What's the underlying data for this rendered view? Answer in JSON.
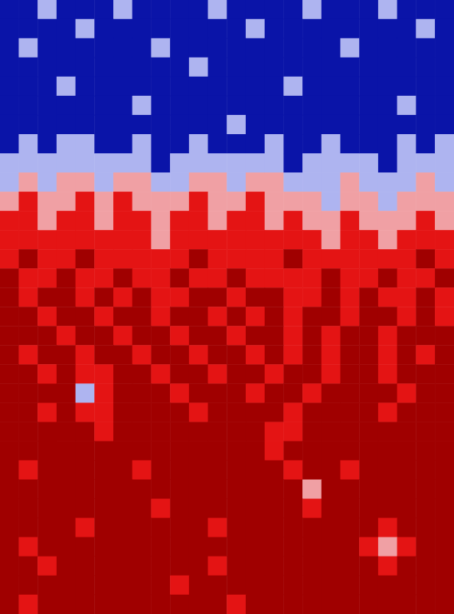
{
  "chart_data": {
    "type": "heatmap",
    "tick_labels": false,
    "zlim": [
      0,
      5
    ],
    "colors": [
      "#0a14a8",
      "#aeb4f0",
      "#f0a0a4",
      "#e41414",
      "#a00000"
    ],
    "values": [
      [
        0,
        0,
        1,
        0,
        0,
        0,
        1,
        0,
        0,
        0,
        0,
        1,
        0,
        0,
        0,
        0,
        1,
        0,
        0,
        0,
        1,
        0,
        0,
        0
      ],
      [
        0,
        0,
        0,
        0,
        1,
        0,
        0,
        0,
        0,
        0,
        0,
        0,
        0,
        1,
        0,
        0,
        0,
        0,
        0,
        0,
        0,
        0,
        1,
        0
      ],
      [
        0,
        1,
        0,
        0,
        0,
        0,
        0,
        0,
        1,
        0,
        0,
        0,
        0,
        0,
        0,
        0,
        0,
        0,
        1,
        0,
        0,
        0,
        0,
        0
      ],
      [
        0,
        0,
        0,
        0,
        0,
        0,
        0,
        0,
        0,
        0,
        1,
        0,
        0,
        0,
        0,
        0,
        0,
        0,
        0,
        0,
        0,
        0,
        0,
        0
      ],
      [
        0,
        0,
        0,
        1,
        0,
        0,
        0,
        0,
        0,
        0,
        0,
        0,
        0,
        0,
        0,
        1,
        0,
        0,
        0,
        0,
        0,
        0,
        0,
        0
      ],
      [
        0,
        0,
        0,
        0,
        0,
        0,
        0,
        1,
        0,
        0,
        0,
        0,
        0,
        0,
        0,
        0,
        0,
        0,
        0,
        0,
        0,
        1,
        0,
        0
      ],
      [
        0,
        0,
        0,
        0,
        0,
        0,
        0,
        0,
        0,
        0,
        0,
        0,
        1,
        0,
        0,
        0,
        0,
        0,
        0,
        0,
        0,
        0,
        0,
        0
      ],
      [
        0,
        1,
        0,
        1,
        1,
        0,
        0,
        1,
        0,
        0,
        1,
        0,
        0,
        0,
        1,
        0,
        0,
        1,
        0,
        0,
        0,
        1,
        0,
        1
      ],
      [
        1,
        1,
        1,
        1,
        1,
        1,
        1,
        1,
        0,
        1,
        1,
        1,
        1,
        1,
        1,
        0,
        1,
        1,
        1,
        1,
        0,
        1,
        1,
        1
      ],
      [
        1,
        2,
        1,
        2,
        2,
        1,
        2,
        2,
        1,
        1,
        2,
        2,
        1,
        2,
        2,
        1,
        1,
        1,
        2,
        1,
        1,
        1,
        2,
        1
      ],
      [
        2,
        3,
        2,
        2,
        3,
        2,
        3,
        2,
        2,
        2,
        3,
        2,
        2,
        3,
        2,
        2,
        2,
        1,
        2,
        2,
        1,
        2,
        2,
        2
      ],
      [
        3,
        3,
        2,
        3,
        3,
        2,
        3,
        3,
        2,
        3,
        3,
        2,
        3,
        3,
        2,
        3,
        2,
        2,
        3,
        2,
        2,
        2,
        3,
        2
      ],
      [
        3,
        3,
        3,
        3,
        3,
        3,
        3,
        3,
        2,
        3,
        3,
        3,
        3,
        3,
        3,
        3,
        3,
        2,
        3,
        3,
        2,
        3,
        3,
        3
      ],
      [
        3,
        4,
        3,
        3,
        4,
        3,
        3,
        3,
        3,
        3,
        4,
        3,
        3,
        3,
        3,
        4,
        3,
        3,
        3,
        3,
        3,
        3,
        4,
        3
      ],
      [
        4,
        3,
        3,
        4,
        3,
        3,
        4,
        3,
        3,
        4,
        3,
        3,
        4,
        3,
        3,
        3,
        3,
        4,
        3,
        3,
        4,
        3,
        3,
        4
      ],
      [
        4,
        3,
        4,
        4,
        3,
        4,
        3,
        4,
        3,
        3,
        4,
        4,
        3,
        4,
        4,
        3,
        3,
        4,
        3,
        4,
        3,
        3,
        4,
        3
      ],
      [
        4,
        4,
        3,
        4,
        4,
        3,
        4,
        4,
        3,
        4,
        4,
        3,
        4,
        3,
        4,
        3,
        4,
        4,
        3,
        4,
        4,
        3,
        4,
        3
      ],
      [
        4,
        4,
        4,
        3,
        4,
        4,
        3,
        4,
        4,
        3,
        4,
        4,
        3,
        4,
        4,
        3,
        4,
        3,
        4,
        4,
        3,
        4,
        4,
        4
      ],
      [
        4,
        3,
        4,
        4,
        3,
        4,
        4,
        3,
        4,
        4,
        3,
        4,
        4,
        3,
        4,
        3,
        4,
        3,
        4,
        4,
        3,
        4,
        3,
        4
      ],
      [
        4,
        4,
        3,
        4,
        3,
        3,
        4,
        4,
        3,
        4,
        4,
        3,
        4,
        4,
        3,
        4,
        4,
        3,
        4,
        4,
        3,
        4,
        4,
        4
      ],
      [
        4,
        4,
        4,
        4,
        1,
        3,
        4,
        4,
        4,
        3,
        4,
        4,
        4,
        3,
        4,
        4,
        3,
        4,
        4,
        4,
        4,
        3,
        4,
        4
      ],
      [
        4,
        4,
        3,
        4,
        3,
        3,
        4,
        4,
        4,
        4,
        3,
        4,
        4,
        4,
        4,
        3,
        4,
        4,
        4,
        4,
        3,
        4,
        4,
        4
      ],
      [
        4,
        4,
        4,
        4,
        4,
        3,
        4,
        4,
        4,
        4,
        4,
        4,
        4,
        4,
        3,
        3,
        4,
        4,
        4,
        4,
        4,
        4,
        4,
        4
      ],
      [
        4,
        4,
        4,
        4,
        4,
        4,
        4,
        4,
        4,
        4,
        4,
        4,
        4,
        4,
        3,
        4,
        4,
        4,
        4,
        4,
        4,
        4,
        4,
        4
      ],
      [
        4,
        3,
        4,
        4,
        4,
        4,
        4,
        3,
        4,
        4,
        4,
        4,
        4,
        4,
        4,
        3,
        4,
        4,
        3,
        4,
        4,
        4,
        4,
        4
      ],
      [
        4,
        4,
        4,
        4,
        4,
        4,
        4,
        4,
        4,
        4,
        4,
        4,
        4,
        4,
        4,
        4,
        2,
        4,
        4,
        4,
        4,
        4,
        4,
        4
      ],
      [
        4,
        4,
        4,
        4,
        4,
        4,
        4,
        4,
        3,
        4,
        4,
        4,
        4,
        4,
        4,
        4,
        3,
        4,
        4,
        4,
        4,
        4,
        4,
        4
      ],
      [
        4,
        4,
        4,
        4,
        3,
        4,
        4,
        4,
        4,
        4,
        4,
        3,
        4,
        4,
        4,
        4,
        4,
        4,
        4,
        4,
        3,
        4,
        4,
        4
      ],
      [
        4,
        3,
        4,
        4,
        4,
        4,
        4,
        4,
        4,
        4,
        4,
        4,
        4,
        4,
        4,
        4,
        4,
        4,
        4,
        3,
        2,
        3,
        4,
        4
      ],
      [
        4,
        4,
        3,
        4,
        4,
        4,
        4,
        4,
        4,
        4,
        4,
        3,
        4,
        4,
        4,
        4,
        4,
        4,
        4,
        4,
        3,
        4,
        4,
        4
      ],
      [
        4,
        4,
        4,
        4,
        4,
        4,
        4,
        4,
        4,
        3,
        4,
        4,
        4,
        4,
        4,
        4,
        4,
        4,
        4,
        4,
        4,
        4,
        4,
        4
      ],
      [
        4,
        3,
        4,
        4,
        4,
        4,
        4,
        4,
        4,
        4,
        4,
        4,
        3,
        4,
        4,
        4,
        4,
        4,
        4,
        4,
        4,
        4,
        4,
        4
      ]
    ]
  }
}
